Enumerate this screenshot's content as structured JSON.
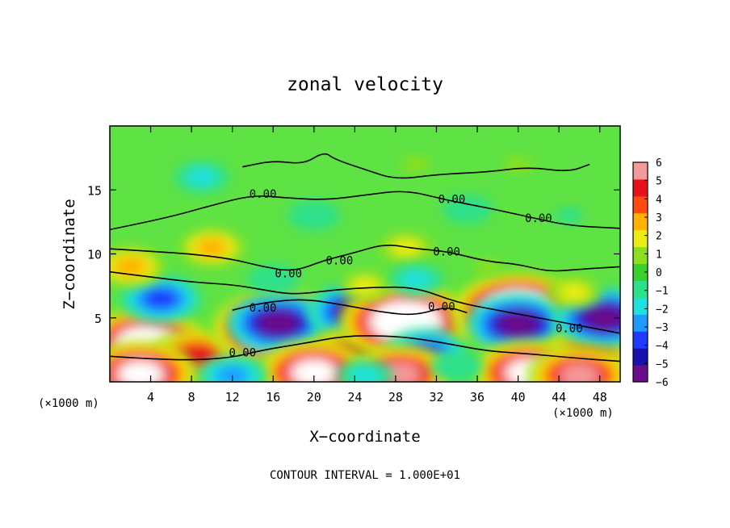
{
  "chart_data": {
    "type": "heatmap",
    "title": "zonal velocity",
    "xlabel": "X−coordinate",
    "ylabel": "Z−coordinate",
    "x_unit": "(×1000 m)",
    "y_unit": "(×1000 m)",
    "footer": "CONTOUR INTERVAL = 1.000E+01",
    "xlim": [
      0,
      50
    ],
    "ylim": [
      0,
      20
    ],
    "x_ticks": [
      {
        "value": 4,
        "label": "4"
      },
      {
        "value": 8,
        "label": "8"
      },
      {
        "value": 12,
        "label": "12"
      },
      {
        "value": 16,
        "label": "16"
      },
      {
        "value": 20,
        "label": "20"
      },
      {
        "value": 24,
        "label": "24"
      },
      {
        "value": 28,
        "label": "28"
      },
      {
        "value": 32,
        "label": "32"
      },
      {
        "value": 36,
        "label": "36"
      },
      {
        "value": 40,
        "label": "40"
      },
      {
        "value": 44,
        "label": "44"
      },
      {
        "value": 48,
        "label": "48"
      }
    ],
    "y_ticks": [
      {
        "value": 5,
        "label": "5"
      },
      {
        "value": 10,
        "label": "10"
      },
      {
        "value": 15,
        "label": "15"
      }
    ],
    "colorbar": {
      "min": -6,
      "max": 6,
      "labels": [
        {
          "value": 6,
          "text": "6"
        },
        {
          "value": 5,
          "text": "5"
        },
        {
          "value": 4,
          "text": "4"
        },
        {
          "value": 3,
          "text": "3"
        },
        {
          "value": 2,
          "text": "2"
        },
        {
          "value": 1,
          "text": "1"
        },
        {
          "value": 0,
          "text": "0"
        },
        {
          "value": -1,
          "text": "−1"
        },
        {
          "value": -2,
          "text": "−2"
        },
        {
          "value": -3,
          "text": "−3"
        },
        {
          "value": -4,
          "text": "−4"
        },
        {
          "value": -5,
          "text": "−5"
        },
        {
          "value": -6,
          "text": "−6"
        }
      ],
      "colors": [
        "#6a0d8c",
        "#1a10b0",
        "#1f3bff",
        "#1e9bff",
        "#1ee0e0",
        "#2de08a",
        "#38d12e",
        "#8ae01e",
        "#ecec14",
        "#ffb000",
        "#ff4a10",
        "#e8101a",
        "#f49a9a"
      ]
    },
    "features": [
      {
        "x": 3.5,
        "z": 3.0,
        "value": 8
      },
      {
        "x": 8.5,
        "z": 2.0,
        "value": 5
      },
      {
        "x": 5.0,
        "z": 6.5,
        "value": -4
      },
      {
        "x": 16.5,
        "z": 4.2,
        "value": 9
      },
      {
        "x": 16.5,
        "z": 4.6,
        "value": -6
      },
      {
        "x": 24.5,
        "z": 5.5,
        "value": -6
      },
      {
        "x": 24.0,
        "z": 2.2,
        "value": 5
      },
      {
        "x": 29.0,
        "z": 4.7,
        "value": 9
      },
      {
        "x": 31.0,
        "z": 2.3,
        "value": -4
      },
      {
        "x": 40.0,
        "z": 5.5,
        "value": 9
      },
      {
        "x": 40.0,
        "z": 4.5,
        "value": -6
      },
      {
        "x": 47.0,
        "z": 2.3,
        "value": 5
      },
      {
        "x": 48.5,
        "z": 5.0,
        "value": -6
      },
      {
        "x": 45.5,
        "z": 7.0,
        "value": 2
      },
      {
        "x": 2.0,
        "z": 9.0,
        "value": 3
      },
      {
        "x": 10.0,
        "z": 10.5,
        "value": 2.5
      },
      {
        "x": 29.0,
        "z": 10.5,
        "value": 2
      },
      {
        "x": 25.0,
        "z": 7.5,
        "value": 1.5
      },
      {
        "x": 30.0,
        "z": 8.0,
        "value": -2
      },
      {
        "x": 16.0,
        "z": 8.0,
        "value": -1.5
      },
      {
        "x": 37.0,
        "z": 9.0,
        "value": 0.5
      },
      {
        "x": 3.0,
        "z": 0.6,
        "value": 7
      },
      {
        "x": 20.0,
        "z": 0.7,
        "value": 7
      },
      {
        "x": 41.0,
        "z": 0.7,
        "value": 7
      },
      {
        "x": 28.5,
        "z": 0.6,
        "value": 6
      },
      {
        "x": 46.0,
        "z": 0.5,
        "value": 6
      },
      {
        "x": 12.0,
        "z": 0.5,
        "value": -3
      },
      {
        "x": 25.0,
        "z": 0.5,
        "value": -2
      },
      {
        "x": 34.0,
        "z": 1.2,
        "value": -1.5
      },
      {
        "x": 9.0,
        "z": 16.0,
        "value": -2
      },
      {
        "x": 20.0,
        "z": 13.0,
        "value": -1.5
      },
      {
        "x": 35.0,
        "z": 13.5,
        "value": -1.2
      },
      {
        "x": 30.0,
        "z": 17.0,
        "value": 1
      },
      {
        "x": 40.0,
        "z": 17.0,
        "value": 0.8
      },
      {
        "x": 45.0,
        "z": 13.0,
        "value": -1
      }
    ],
    "zero_contour_labels": [
      {
        "x": 15.0,
        "z": 14.7,
        "text": "0.00"
      },
      {
        "x": 33.5,
        "z": 14.3,
        "text": "0.00"
      },
      {
        "x": 42.0,
        "z": 12.8,
        "text": "0.00"
      },
      {
        "x": 33.0,
        "z": 10.2,
        "text": "0.00"
      },
      {
        "x": 22.5,
        "z": 9.5,
        "text": "0.00"
      },
      {
        "x": 17.5,
        "z": 8.5,
        "text": "0.00"
      },
      {
        "x": 32.5,
        "z": 5.9,
        "text": "0.00"
      },
      {
        "x": 15.0,
        "z": 5.8,
        "text": "0.00"
      },
      {
        "x": 45.0,
        "z": 4.2,
        "text": "0.00"
      },
      {
        "x": 13.0,
        "z": 2.3,
        "text": "0.00"
      }
    ]
  }
}
